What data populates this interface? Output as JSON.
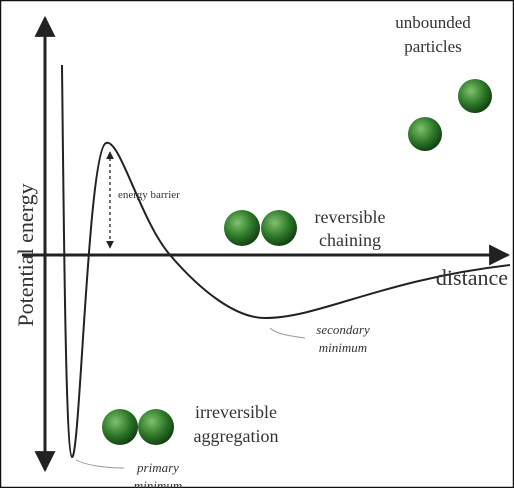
{
  "axes": {
    "y_label": "Potential energy",
    "x_label": "distance"
  },
  "annotations": {
    "energy_barrier": "energy barrier",
    "unbounded_particles": [
      "unbounded",
      "particles"
    ],
    "reversible_chaining": [
      "reversible",
      "chaining"
    ],
    "secondary_minimum": [
      "secondary",
      "minimum"
    ],
    "irreversible_aggregation": [
      "irreversible",
      "aggregation"
    ],
    "primary_minimum": [
      "primary",
      "minimum"
    ]
  }
}
